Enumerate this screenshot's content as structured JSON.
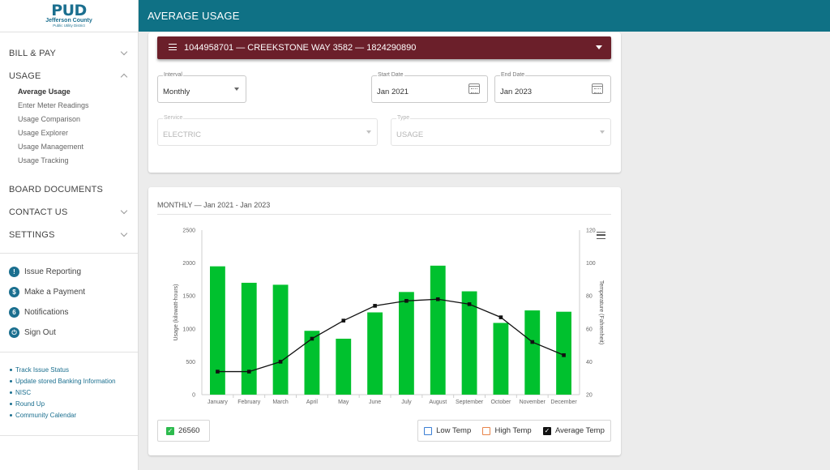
{
  "logo": {
    "mark": "PUD",
    "name": "Jefferson County",
    "sub": "Public Utility District"
  },
  "header": {
    "title": "AVERAGE USAGE"
  },
  "sidebar": {
    "sections": {
      "bill_pay": "BILL & PAY",
      "usage": "USAGE",
      "board_documents": "BOARD DOCUMENTS",
      "contact_us": "CONTACT US",
      "settings": "SETTINGS"
    },
    "usage_items": [
      "Average Usage",
      "Enter Meter Readings",
      "Usage Comparison",
      "Usage Explorer",
      "Usage Management",
      "Usage Tracking"
    ],
    "actions": [
      {
        "label": "Issue Reporting",
        "icon": "!",
        "icon_name": "alert-icon"
      },
      {
        "label": "Make a Payment",
        "icon": "$",
        "icon_name": "dollar-icon"
      },
      {
        "label": "Notifications",
        "icon": "6",
        "icon_name": "notification-count-icon"
      },
      {
        "label": "Sign Out",
        "icon": "⏻",
        "icon_name": "power-icon"
      }
    ],
    "links": [
      "Track Issue Status",
      "Update stored Banking Information",
      "NISC",
      "Round Up",
      "Community Calendar"
    ]
  },
  "account": {
    "text": "1044958701 — CREEKSTONE WAY 3582 — 1824290890"
  },
  "filters": {
    "interval": {
      "label": "Interval",
      "value": "Monthly"
    },
    "start_date": {
      "label": "Start Date",
      "value": "Jan 2021"
    },
    "end_date": {
      "label": "End Date",
      "value": "Jan 2023"
    },
    "service": {
      "label": "Service",
      "value": "ELECTRIC"
    },
    "type": {
      "label": "Type",
      "value": "USAGE"
    }
  },
  "chart_panel": {
    "title": "MONTHLY — Jan 2021 - Jan 2023"
  },
  "totals": {
    "value": "26560"
  },
  "legend": {
    "low": "Low Temp",
    "high": "High Temp",
    "avg": "Average Temp"
  },
  "colors": {
    "header": "#0f7185",
    "account_bar": "#6b1f2a",
    "bar": "#00c12e",
    "low": "#3b7fd4",
    "high": "#e8844a",
    "avg": "#111111"
  },
  "chart_data": {
    "type": "bar",
    "categories": [
      "January",
      "February",
      "March",
      "April",
      "May",
      "June",
      "July",
      "August",
      "September",
      "October",
      "November",
      "December"
    ],
    "series": [
      {
        "values": [
          1950,
          1700,
          1670,
          970,
          850,
          1250,
          1560,
          1960,
          1570,
          1090,
          1280,
          1260
        ],
        "axis": "left",
        "type": "bar"
      },
      {
        "values": [
          34,
          34,
          40,
          54,
          65,
          74,
          77,
          78,
          75,
          67,
          52,
          44
        ],
        "axis": "right",
        "type": "line",
        "name": "Average Temp"
      }
    ],
    "ylabel": "Usage (kilowatt-hours)",
    "y2label": "Temperature (Fahrenheit)",
    "ylim": [
      0,
      2500
    ],
    "y2lim": [
      20,
      120
    ],
    "yticks": [
      "0",
      "500",
      "1000",
      "1500",
      "2000",
      "2500"
    ],
    "y2ticks": [
      "20",
      "40",
      "60",
      "80",
      "100",
      "120"
    ],
    "grid": false
  }
}
